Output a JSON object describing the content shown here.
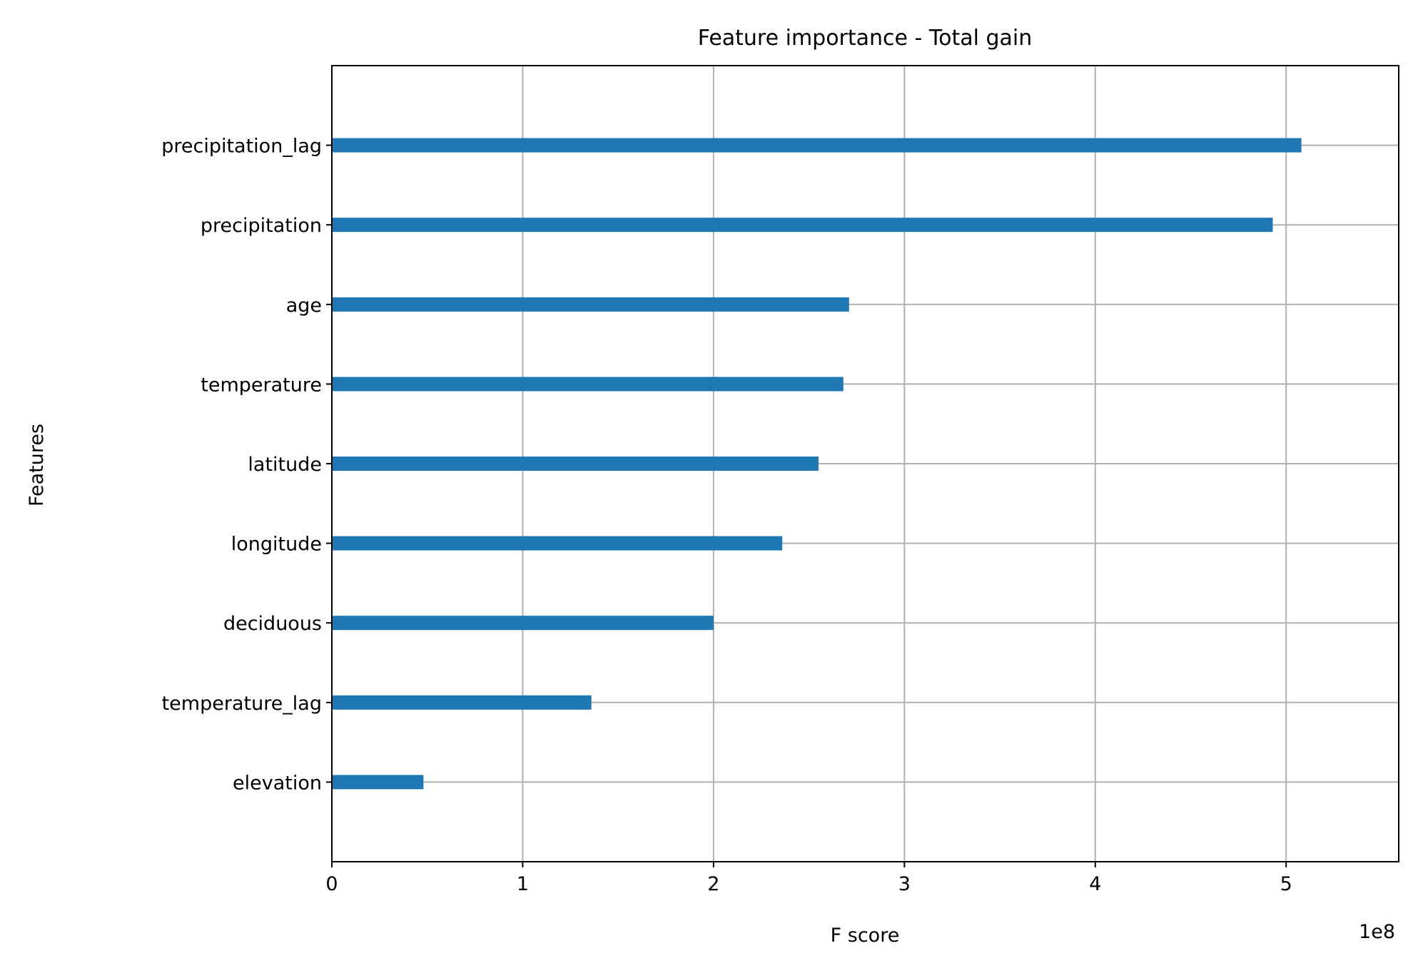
{
  "chart_data": {
    "type": "bar",
    "orientation": "horizontal",
    "title": "Feature importance - Total gain",
    "xlabel": "F score",
    "ylabel": "Features",
    "x_offset_label": "1e8",
    "x_ticks": [
      0,
      1,
      2,
      3,
      4,
      5
    ],
    "xlim": [
      0,
      5.59
    ],
    "x_scale_factor": 100000000,
    "grid": true,
    "bar_color": "#1f77b4",
    "categories": [
      "precipitation_lag",
      "precipitation",
      "age",
      "temperature",
      "latitude",
      "longitude",
      "deciduous",
      "temperature_lag",
      "elevation"
    ],
    "values": [
      5.08,
      4.93,
      2.71,
      2.68,
      2.55,
      2.36,
      2.0,
      1.36,
      0.48
    ]
  }
}
